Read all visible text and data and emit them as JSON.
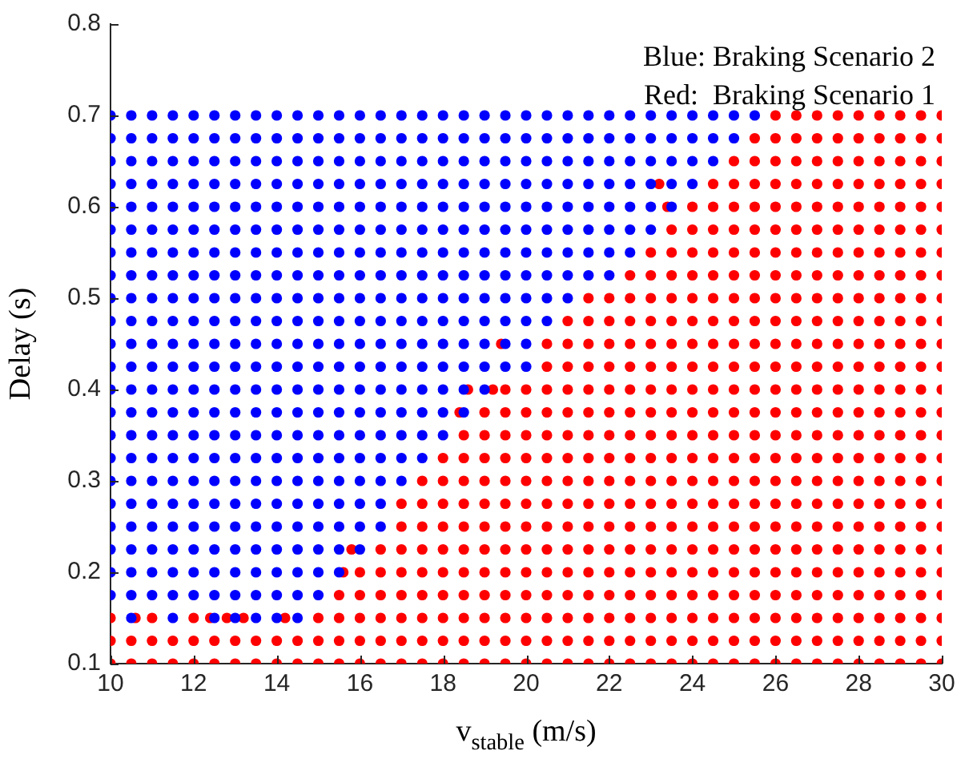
{
  "chart_data": {
    "type": "scatter",
    "xlabel": "v$_{stable}$ (m/s)",
    "ylabel": "Delay (s)",
    "xlim": [
      10,
      30
    ],
    "xticks": [
      10,
      12,
      14,
      16,
      18,
      20,
      22,
      24,
      26,
      28,
      30
    ],
    "ylim": [
      0.1,
      0.8
    ],
    "yticks": [
      0.1,
      0.2,
      0.3,
      0.4,
      0.5,
      0.6,
      0.7,
      0.8
    ],
    "marker": "circle",
    "annotations": [
      "Blue: Braking Scenario 2",
      "Red:  Braking Scenario 1"
    ],
    "series": [
      {
        "color": "#0000ff",
        "x": [
          10,
          10.5,
          11,
          11.5,
          12,
          12.5,
          13,
          13.5,
          14,
          14.5,
          15,
          15.5,
          16,
          16.5,
          17,
          17.5,
          18,
          18.5,
          19,
          19.5,
          20,
          20.5,
          21,
          21.5,
          22,
          22.5,
          23,
          23.5,
          24,
          24.5,
          25,
          25.5,
          10,
          10.5,
          11,
          11.5,
          12,
          12.5,
          13,
          13.5,
          14,
          14.5,
          15,
          15.5,
          16,
          16.5,
          17,
          17.5,
          18,
          18.5,
          19,
          19.5,
          20,
          20.5,
          21,
          21.5,
          22,
          22.5,
          23,
          23.5,
          24,
          24.5,
          25,
          10,
          10.5,
          11,
          11.5,
          12,
          12.5,
          13,
          13.5,
          14,
          14.5,
          15,
          15.5,
          16,
          16.5,
          17,
          17.5,
          18,
          18.5,
          19,
          19.5,
          20,
          20.5,
          21,
          21.5,
          22,
          22.5,
          23,
          23.5,
          24,
          24.5,
          10,
          10.5,
          11,
          11.5,
          12,
          12.5,
          13,
          13.5,
          14,
          14.5,
          15,
          15.5,
          16,
          16.5,
          17,
          17.5,
          18,
          18.5,
          19,
          19.5,
          20,
          20.5,
          21,
          21.5,
          22,
          22.5,
          23,
          23.5,
          24,
          10,
          10.5,
          11,
          11.5,
          12,
          12.5,
          13,
          13.5,
          14,
          14.5,
          15,
          15.5,
          16,
          16.5,
          17,
          17.5,
          18,
          18.5,
          19,
          19.5,
          20,
          20.5,
          21,
          21.5,
          22,
          22.5,
          23,
          23.5,
          10,
          10.5,
          11,
          11.5,
          12,
          12.5,
          13,
          13.5,
          14,
          14.5,
          15,
          15.5,
          16,
          16.5,
          17,
          17.5,
          18,
          18.5,
          19,
          19.5,
          20,
          20.5,
          21,
          21.5,
          22,
          22.5,
          23,
          10,
          10.5,
          11,
          11.5,
          12,
          12.5,
          13,
          13.5,
          14,
          14.5,
          15,
          15.5,
          16,
          16.5,
          17,
          17.5,
          18,
          18.5,
          19,
          19.5,
          20,
          20.5,
          21,
          21.5,
          22,
          22.5,
          10,
          10.5,
          11,
          11.5,
          12,
          12.5,
          13,
          13.5,
          14,
          14.5,
          15,
          15.5,
          16,
          16.5,
          17,
          17.5,
          18,
          18.5,
          19,
          19.5,
          20,
          20.5,
          21,
          21.5,
          22,
          10,
          10.5,
          11,
          11.5,
          12,
          12.5,
          13,
          13.5,
          14,
          14.5,
          15,
          15.5,
          16,
          16.5,
          17,
          17.5,
          18,
          18.5,
          19,
          19.5,
          20,
          20.5,
          21,
          10,
          10.5,
          11,
          11.5,
          12,
          12.5,
          13,
          13.5,
          14,
          14.5,
          15,
          15.5,
          16,
          16.5,
          17,
          17.5,
          18,
          18.5,
          19,
          19.5,
          20,
          20.5,
          10,
          10.5,
          11,
          11.5,
          12,
          12.5,
          13,
          13.5,
          14,
          14.5,
          15,
          15.5,
          16,
          16.5,
          17,
          17.5,
          18,
          18.5,
          19,
          19.5,
          20,
          10,
          10.5,
          11,
          11.5,
          12,
          12.5,
          13,
          13.5,
          14,
          14.5,
          15,
          15.5,
          16,
          16.5,
          17,
          17.5,
          18,
          18.5,
          19,
          19.5,
          20,
          10,
          10.5,
          11,
          11.5,
          12,
          12.5,
          13,
          13.5,
          14,
          14.5,
          15,
          15.5,
          16,
          16.5,
          17,
          17.5,
          18,
          18.5,
          19,
          10,
          10.5,
          11,
          11.5,
          12,
          12.5,
          13,
          13.5,
          14,
          14.5,
          15,
          15.5,
          16,
          16.5,
          17,
          17.5,
          18,
          18.5,
          10,
          10.5,
          11,
          11.5,
          12,
          12.5,
          13,
          13.5,
          14,
          14.5,
          15,
          15.5,
          16,
          16.5,
          17,
          17.5,
          18,
          10,
          10.5,
          11,
          11.5,
          12,
          12.5,
          13,
          13.5,
          14,
          14.5,
          15,
          15.5,
          16,
          16.5,
          17,
          17.5,
          10,
          10.5,
          11,
          11.5,
          12,
          12.5,
          13,
          13.5,
          14,
          14.5,
          15,
          15.5,
          16,
          16.5,
          17,
          10,
          10.5,
          11,
          11.5,
          12,
          12.5,
          13,
          13.5,
          14,
          14.5,
          15,
          15.5,
          16,
          16.5,
          10,
          10.5,
          11,
          11.5,
          12,
          12.5,
          13,
          13.5,
          14,
          14.5,
          15,
          15.5,
          16,
          16.5,
          10,
          10.5,
          11,
          11.5,
          12,
          12.5,
          13,
          13.5,
          14,
          14.5,
          15,
          15.5,
          16,
          10,
          10.5,
          11,
          11.5,
          12,
          12.5,
          13,
          13.5,
          14,
          14.5,
          15,
          15.5,
          10,
          10.5,
          11,
          11.5,
          12,
          12.5,
          13,
          13.5,
          14,
          14.5,
          15,
          10.5,
          11.5,
          12.5,
          13,
          13.5,
          14,
          14.5
        ],
        "values": [
          0.7,
          0.7,
          0.7,
          0.7,
          0.7,
          0.7,
          0.7,
          0.7,
          0.7,
          0.7,
          0.7,
          0.7,
          0.7,
          0.7,
          0.7,
          0.7,
          0.7,
          0.7,
          0.7,
          0.7,
          0.7,
          0.7,
          0.7,
          0.7,
          0.7,
          0.7,
          0.7,
          0.7,
          0.7,
          0.7,
          0.7,
          0.7,
          0.675,
          0.675,
          0.675,
          0.675,
          0.675,
          0.675,
          0.675,
          0.675,
          0.675,
          0.675,
          0.675,
          0.675,
          0.675,
          0.675,
          0.675,
          0.675,
          0.675,
          0.675,
          0.675,
          0.675,
          0.675,
          0.675,
          0.675,
          0.675,
          0.675,
          0.675,
          0.675,
          0.675,
          0.675,
          0.675,
          0.675,
          0.65,
          0.65,
          0.65,
          0.65,
          0.65,
          0.65,
          0.65,
          0.65,
          0.65,
          0.65,
          0.65,
          0.65,
          0.65,
          0.65,
          0.65,
          0.65,
          0.65,
          0.65,
          0.65,
          0.65,
          0.65,
          0.65,
          0.65,
          0.65,
          0.65,
          0.65,
          0.65,
          0.65,
          0.65,
          0.65,
          0.625,
          0.625,
          0.625,
          0.625,
          0.625,
          0.625,
          0.625,
          0.625,
          0.625,
          0.625,
          0.625,
          0.625,
          0.625,
          0.625,
          0.625,
          0.625,
          0.625,
          0.625,
          0.625,
          0.625,
          0.625,
          0.625,
          0.625,
          0.625,
          0.625,
          0.625,
          0.625,
          0.625,
          0.625,
          0.6,
          0.6,
          0.6,
          0.6,
          0.6,
          0.6,
          0.6,
          0.6,
          0.6,
          0.6,
          0.6,
          0.6,
          0.6,
          0.6,
          0.6,
          0.6,
          0.6,
          0.6,
          0.6,
          0.6,
          0.6,
          0.6,
          0.6,
          0.6,
          0.6,
          0.6,
          0.6,
          0.6,
          0.575,
          0.575,
          0.575,
          0.575,
          0.575,
          0.575,
          0.575,
          0.575,
          0.575,
          0.575,
          0.575,
          0.575,
          0.575,
          0.575,
          0.575,
          0.575,
          0.575,
          0.575,
          0.575,
          0.575,
          0.575,
          0.575,
          0.575,
          0.575,
          0.575,
          0.575,
          0.575,
          0.55,
          0.55,
          0.55,
          0.55,
          0.55,
          0.55,
          0.55,
          0.55,
          0.55,
          0.55,
          0.55,
          0.55,
          0.55,
          0.55,
          0.55,
          0.55,
          0.55,
          0.55,
          0.55,
          0.55,
          0.55,
          0.55,
          0.55,
          0.55,
          0.55,
          0.55,
          0.525,
          0.525,
          0.525,
          0.525,
          0.525,
          0.525,
          0.525,
          0.525,
          0.525,
          0.525,
          0.525,
          0.525,
          0.525,
          0.525,
          0.525,
          0.525,
          0.525,
          0.525,
          0.525,
          0.525,
          0.525,
          0.525,
          0.525,
          0.525,
          0.525,
          0.5,
          0.5,
          0.5,
          0.5,
          0.5,
          0.5,
          0.5,
          0.5,
          0.5,
          0.5,
          0.5,
          0.5,
          0.5,
          0.5,
          0.5,
          0.5,
          0.5,
          0.5,
          0.5,
          0.5,
          0.5,
          0.5,
          0.5,
          0.475,
          0.475,
          0.475,
          0.475,
          0.475,
          0.475,
          0.475,
          0.475,
          0.475,
          0.475,
          0.475,
          0.475,
          0.475,
          0.475,
          0.475,
          0.475,
          0.475,
          0.475,
          0.475,
          0.475,
          0.475,
          0.475,
          0.45,
          0.45,
          0.45,
          0.45,
          0.45,
          0.45,
          0.45,
          0.45,
          0.45,
          0.45,
          0.45,
          0.45,
          0.45,
          0.45,
          0.45,
          0.45,
          0.45,
          0.45,
          0.45,
          0.45,
          0.45,
          0.425,
          0.425,
          0.425,
          0.425,
          0.425,
          0.425,
          0.425,
          0.425,
          0.425,
          0.425,
          0.425,
          0.425,
          0.425,
          0.425,
          0.425,
          0.425,
          0.425,
          0.425,
          0.425,
          0.425,
          0.425,
          0.4,
          0.4,
          0.4,
          0.4,
          0.4,
          0.4,
          0.4,
          0.4,
          0.4,
          0.4,
          0.4,
          0.4,
          0.4,
          0.4,
          0.4,
          0.4,
          0.4,
          0.4,
          0.4,
          0.375,
          0.375,
          0.375,
          0.375,
          0.375,
          0.375,
          0.375,
          0.375,
          0.375,
          0.375,
          0.375,
          0.375,
          0.375,
          0.375,
          0.375,
          0.375,
          0.375,
          0.375,
          0.35,
          0.35,
          0.35,
          0.35,
          0.35,
          0.35,
          0.35,
          0.35,
          0.35,
          0.35,
          0.35,
          0.35,
          0.35,
          0.35,
          0.35,
          0.35,
          0.35,
          0.325,
          0.325,
          0.325,
          0.325,
          0.325,
          0.325,
          0.325,
          0.325,
          0.325,
          0.325,
          0.325,
          0.325,
          0.325,
          0.325,
          0.325,
          0.325,
          0.3,
          0.3,
          0.3,
          0.3,
          0.3,
          0.3,
          0.3,
          0.3,
          0.3,
          0.3,
          0.3,
          0.3,
          0.3,
          0.3,
          0.3,
          0.275,
          0.275,
          0.275,
          0.275,
          0.275,
          0.275,
          0.275,
          0.275,
          0.275,
          0.275,
          0.275,
          0.275,
          0.275,
          0.275,
          0.25,
          0.25,
          0.25,
          0.25,
          0.25,
          0.25,
          0.25,
          0.25,
          0.25,
          0.25,
          0.25,
          0.25,
          0.25,
          0.25,
          0.225,
          0.225,
          0.225,
          0.225,
          0.225,
          0.225,
          0.225,
          0.225,
          0.225,
          0.225,
          0.225,
          0.225,
          0.225,
          0.2,
          0.2,
          0.2,
          0.2,
          0.2,
          0.2,
          0.2,
          0.2,
          0.2,
          0.2,
          0.2,
          0.2,
          0.175,
          0.175,
          0.175,
          0.175,
          0.175,
          0.175,
          0.175,
          0.175,
          0.175,
          0.175,
          0.175,
          0.15,
          0.15,
          0.15,
          0.15,
          0.15,
          0.15,
          0.15
        ]
      },
      {
        "color": "#ff0000",
        "x": [
          26,
          26.5,
          27,
          27.5,
          28,
          28.5,
          29,
          29.5,
          30,
          25.5,
          26,
          26.5,
          27,
          27.5,
          28,
          28.5,
          29,
          29.5,
          30,
          25,
          25.5,
          26,
          26.5,
          27,
          27.5,
          28,
          28.5,
          29,
          29.5,
          30,
          24.5,
          25,
          25.5,
          26,
          26.5,
          27,
          27.5,
          28,
          28.5,
          29,
          29.5,
          30,
          24,
          24.5,
          25,
          25.5,
          26,
          26.5,
          27,
          27.5,
          28,
          28.5,
          29,
          29.5,
          30,
          23.5,
          24,
          24.5,
          25,
          25.5,
          26,
          26.5,
          27,
          27.5,
          28,
          28.5,
          29,
          29.5,
          30,
          23,
          23.5,
          24,
          24.5,
          25,
          25.5,
          26,
          26.5,
          27,
          27.5,
          28,
          28.5,
          29,
          29.5,
          30,
          22.5,
          23,
          23.5,
          24,
          24.5,
          25,
          25.5,
          26,
          26.5,
          27,
          27.5,
          28,
          28.5,
          29,
          29.5,
          30,
          21.5,
          22,
          22.5,
          23,
          23.5,
          24,
          24.5,
          25,
          25.5,
          26,
          26.5,
          27,
          27.5,
          28,
          28.5,
          29,
          29.5,
          30,
          21,
          21.5,
          22,
          22.5,
          23,
          23.5,
          24,
          24.5,
          25,
          25.5,
          26,
          26.5,
          27,
          27.5,
          28,
          28.5,
          29,
          29.5,
          30,
          20.5,
          21,
          21.5,
          22,
          22.5,
          23,
          23.5,
          24,
          24.5,
          25,
          25.5,
          26,
          26.5,
          27,
          27.5,
          28,
          28.5,
          29,
          29.5,
          30,
          20.5,
          21,
          21.5,
          22,
          22.5,
          23,
          23.5,
          24,
          24.5,
          25,
          25.5,
          26,
          26.5,
          27,
          27.5,
          28,
          28.5,
          29,
          29.5,
          30,
          19.5,
          20,
          20.5,
          21,
          21.5,
          22,
          22.5,
          23,
          23.5,
          24,
          24.5,
          25,
          25.5,
          26,
          26.5,
          27,
          27.5,
          28,
          28.5,
          29,
          29.5,
          30,
          19,
          19.5,
          20,
          20.5,
          21,
          21.5,
          22,
          22.5,
          23,
          23.5,
          24,
          24.5,
          25,
          25.5,
          26,
          26.5,
          27,
          27.5,
          28,
          28.5,
          29,
          29.5,
          30,
          18.5,
          19,
          19.5,
          20,
          20.5,
          21,
          21.5,
          22,
          22.5,
          23,
          23.5,
          24,
          24.5,
          25,
          25.5,
          26,
          26.5,
          27,
          27.5,
          28,
          28.5,
          29,
          29.5,
          30,
          18,
          18.5,
          19,
          19.5,
          20,
          20.5,
          21,
          21.5,
          22,
          22.5,
          23,
          23.5,
          24,
          24.5,
          25,
          25.5,
          26,
          26.5,
          27,
          27.5,
          28,
          28.5,
          29,
          29.5,
          30,
          17.5,
          18,
          18.5,
          19,
          19.5,
          20,
          20.5,
          21,
          21.5,
          22,
          22.5,
          23,
          23.5,
          24,
          24.5,
          25,
          25.5,
          26,
          26.5,
          27,
          27.5,
          28,
          28.5,
          29,
          29.5,
          30,
          17,
          17.5,
          18,
          18.5,
          19,
          19.5,
          20,
          20.5,
          21,
          21.5,
          22,
          22.5,
          23,
          23.5,
          24,
          24.5,
          25,
          25.5,
          26,
          26.5,
          27,
          27.5,
          28,
          28.5,
          29,
          29.5,
          30,
          17,
          17.5,
          18,
          18.5,
          19,
          19.5,
          20,
          20.5,
          21,
          21.5,
          22,
          22.5,
          23,
          23.5,
          24,
          24.5,
          25,
          25.5,
          26,
          26.5,
          27,
          27.5,
          28,
          28.5,
          29,
          29.5,
          30,
          16.5,
          17,
          17.5,
          18,
          18.5,
          19,
          19.5,
          20,
          20.5,
          21,
          21.5,
          22,
          22.5,
          23,
          23.5,
          24,
          24.5,
          25,
          25.5,
          26,
          26.5,
          27,
          27.5,
          28,
          28.5,
          29,
          29.5,
          30,
          16,
          16.5,
          17,
          17.5,
          18,
          18.5,
          19,
          19.5,
          20,
          20.5,
          21,
          21.5,
          22,
          22.5,
          23,
          23.5,
          24,
          24.5,
          25,
          25.5,
          26,
          26.5,
          27,
          27.5,
          28,
          28.5,
          29,
          29.5,
          30,
          15.5,
          16,
          16.5,
          17,
          17.5,
          18,
          18.5,
          19,
          19.5,
          20,
          20.5,
          21,
          21.5,
          22,
          22.5,
          23,
          23.5,
          24,
          24.5,
          25,
          25.5,
          26,
          26.5,
          27,
          27.5,
          28,
          28.5,
          29,
          29.5,
          30,
          10,
          11,
          12,
          15,
          15.5,
          16,
          16.5,
          17,
          17.5,
          18,
          18.5,
          19,
          19.5,
          20,
          20.5,
          21,
          21.5,
          22,
          22.5,
          23,
          23.5,
          24,
          24.5,
          25,
          25.5,
          26,
          26.5,
          27,
          27.5,
          28,
          28.5,
          29,
          29.5,
          30,
          10,
          10.5,
          11,
          11.5,
          12,
          12.5,
          13,
          13.5,
          14,
          14.5,
          15,
          15.5,
          16,
          16.5,
          17,
          17.5,
          18,
          18.5,
          19,
          19.5,
          20,
          20.5,
          21,
          21.5,
          22,
          22.5,
          23,
          23.5,
          24,
          24.5,
          25,
          25.5,
          26,
          26.5,
          27,
          27.5,
          28,
          28.5,
          29,
          29.5,
          30,
          10,
          10.5,
          11,
          11.5,
          12,
          12.5,
          13,
          13.5,
          14,
          14.5,
          15,
          15.5,
          16,
          16.5,
          17,
          17.5,
          18,
          18.5,
          19,
          19.5,
          20,
          20.5,
          21,
          21.5,
          22,
          22.5,
          23,
          23.5,
          24,
          24.5,
          25,
          25.5,
          26,
          26.5,
          27,
          27.5,
          28,
          28.5,
          29,
          29.5,
          30,
          23.2,
          23.4,
          19.4,
          18.6,
          19.2,
          18.4,
          15.8,
          15.6,
          10.6,
          12.4,
          12.8,
          13.2,
          14.2
        ],
        "values": [
          0.7,
          0.7,
          0.7,
          0.7,
          0.7,
          0.7,
          0.7,
          0.7,
          0.7,
          0.675,
          0.675,
          0.675,
          0.675,
          0.675,
          0.675,
          0.675,
          0.675,
          0.675,
          0.675,
          0.65,
          0.65,
          0.65,
          0.65,
          0.65,
          0.65,
          0.65,
          0.65,
          0.65,
          0.65,
          0.65,
          0.625,
          0.625,
          0.625,
          0.625,
          0.625,
          0.625,
          0.625,
          0.625,
          0.625,
          0.625,
          0.625,
          0.625,
          0.6,
          0.6,
          0.6,
          0.6,
          0.6,
          0.6,
          0.6,
          0.6,
          0.6,
          0.6,
          0.6,
          0.6,
          0.6,
          0.575,
          0.575,
          0.575,
          0.575,
          0.575,
          0.575,
          0.575,
          0.575,
          0.575,
          0.575,
          0.575,
          0.575,
          0.575,
          0.575,
          0.55,
          0.55,
          0.55,
          0.55,
          0.55,
          0.55,
          0.55,
          0.55,
          0.55,
          0.55,
          0.55,
          0.55,
          0.55,
          0.55,
          0.55,
          0.525,
          0.525,
          0.525,
          0.525,
          0.525,
          0.525,
          0.525,
          0.525,
          0.525,
          0.525,
          0.525,
          0.525,
          0.525,
          0.525,
          0.525,
          0.525,
          0.5,
          0.5,
          0.5,
          0.5,
          0.5,
          0.5,
          0.5,
          0.5,
          0.5,
          0.5,
          0.5,
          0.5,
          0.5,
          0.5,
          0.5,
          0.5,
          0.5,
          0.5,
          0.475,
          0.475,
          0.475,
          0.475,
          0.475,
          0.475,
          0.475,
          0.475,
          0.475,
          0.475,
          0.475,
          0.475,
          0.475,
          0.475,
          0.475,
          0.475,
          0.475,
          0.475,
          0.475,
          0.45,
          0.45,
          0.45,
          0.45,
          0.45,
          0.45,
          0.45,
          0.45,
          0.45,
          0.45,
          0.45,
          0.45,
          0.45,
          0.45,
          0.45,
          0.45,
          0.45,
          0.45,
          0.45,
          0.45,
          0.425,
          0.425,
          0.425,
          0.425,
          0.425,
          0.425,
          0.425,
          0.425,
          0.425,
          0.425,
          0.425,
          0.425,
          0.425,
          0.425,
          0.425,
          0.425,
          0.425,
          0.425,
          0.425,
          0.425,
          0.4,
          0.4,
          0.4,
          0.4,
          0.4,
          0.4,
          0.4,
          0.4,
          0.4,
          0.4,
          0.4,
          0.4,
          0.4,
          0.4,
          0.4,
          0.4,
          0.4,
          0.4,
          0.4,
          0.4,
          0.4,
          0.4,
          0.375,
          0.375,
          0.375,
          0.375,
          0.375,
          0.375,
          0.375,
          0.375,
          0.375,
          0.375,
          0.375,
          0.375,
          0.375,
          0.375,
          0.375,
          0.375,
          0.375,
          0.375,
          0.375,
          0.375,
          0.375,
          0.375,
          0.375,
          0.35,
          0.35,
          0.35,
          0.35,
          0.35,
          0.35,
          0.35,
          0.35,
          0.35,
          0.35,
          0.35,
          0.35,
          0.35,
          0.35,
          0.35,
          0.35,
          0.35,
          0.35,
          0.35,
          0.35,
          0.35,
          0.35,
          0.35,
          0.35,
          0.325,
          0.325,
          0.325,
          0.325,
          0.325,
          0.325,
          0.325,
          0.325,
          0.325,
          0.325,
          0.325,
          0.325,
          0.325,
          0.325,
          0.325,
          0.325,
          0.325,
          0.325,
          0.325,
          0.325,
          0.325,
          0.325,
          0.325,
          0.325,
          0.325,
          0.3,
          0.3,
          0.3,
          0.3,
          0.3,
          0.3,
          0.3,
          0.3,
          0.3,
          0.3,
          0.3,
          0.3,
          0.3,
          0.3,
          0.3,
          0.3,
          0.3,
          0.3,
          0.3,
          0.3,
          0.3,
          0.3,
          0.3,
          0.3,
          0.3,
          0.3,
          0.275,
          0.275,
          0.275,
          0.275,
          0.275,
          0.275,
          0.275,
          0.275,
          0.275,
          0.275,
          0.275,
          0.275,
          0.275,
          0.275,
          0.275,
          0.275,
          0.275,
          0.275,
          0.275,
          0.275,
          0.275,
          0.275,
          0.275,
          0.275,
          0.275,
          0.275,
          0.275,
          0.25,
          0.25,
          0.25,
          0.25,
          0.25,
          0.25,
          0.25,
          0.25,
          0.25,
          0.25,
          0.25,
          0.25,
          0.25,
          0.25,
          0.25,
          0.25,
          0.25,
          0.25,
          0.25,
          0.25,
          0.25,
          0.25,
          0.25,
          0.25,
          0.25,
          0.25,
          0.25,
          0.225,
          0.225,
          0.225,
          0.225,
          0.225,
          0.225,
          0.225,
          0.225,
          0.225,
          0.225,
          0.225,
          0.225,
          0.225,
          0.225,
          0.225,
          0.225,
          0.225,
          0.225,
          0.225,
          0.225,
          0.225,
          0.225,
          0.225,
          0.225,
          0.225,
          0.225,
          0.225,
          0.225,
          0.2,
          0.2,
          0.2,
          0.2,
          0.2,
          0.2,
          0.2,
          0.2,
          0.2,
          0.2,
          0.2,
          0.2,
          0.2,
          0.2,
          0.2,
          0.2,
          0.2,
          0.2,
          0.2,
          0.2,
          0.2,
          0.2,
          0.2,
          0.2,
          0.2,
          0.2,
          0.2,
          0.2,
          0.2,
          0.175,
          0.175,
          0.175,
          0.175,
          0.175,
          0.175,
          0.175,
          0.175,
          0.175,
          0.175,
          0.175,
          0.175,
          0.175,
          0.175,
          0.175,
          0.175,
          0.175,
          0.175,
          0.175,
          0.175,
          0.175,
          0.175,
          0.175,
          0.175,
          0.175,
          0.175,
          0.175,
          0.175,
          0.175,
          0.175,
          0.15,
          0.15,
          0.15,
          0.15,
          0.15,
          0.15,
          0.15,
          0.15,
          0.15,
          0.15,
          0.15,
          0.15,
          0.15,
          0.15,
          0.15,
          0.15,
          0.15,
          0.15,
          0.15,
          0.15,
          0.15,
          0.15,
          0.15,
          0.15,
          0.15,
          0.15,
          0.15,
          0.15,
          0.15,
          0.15,
          0.15,
          0.15,
          0.15,
          0.15,
          0.125,
          0.125,
          0.125,
          0.125,
          0.125,
          0.125,
          0.125,
          0.125,
          0.125,
          0.125,
          0.125,
          0.125,
          0.125,
          0.125,
          0.125,
          0.125,
          0.125,
          0.125,
          0.125,
          0.125,
          0.125,
          0.125,
          0.125,
          0.125,
          0.125,
          0.125,
          0.125,
          0.125,
          0.125,
          0.125,
          0.125,
          0.125,
          0.125,
          0.125,
          0.125,
          0.125,
          0.125,
          0.125,
          0.125,
          0.125,
          0.125,
          0.1,
          0.1,
          0.1,
          0.1,
          0.1,
          0.1,
          0.1,
          0.1,
          0.1,
          0.1,
          0.1,
          0.1,
          0.1,
          0.1,
          0.1,
          0.1,
          0.1,
          0.1,
          0.1,
          0.1,
          0.1,
          0.1,
          0.1,
          0.1,
          0.1,
          0.1,
          0.1,
          0.1,
          0.1,
          0.1,
          0.1,
          0.1,
          0.1,
          0.1,
          0.1,
          0.1,
          0.1,
          0.1,
          0.1,
          0.1,
          0.1,
          0.625,
          0.6,
          0.45,
          0.4,
          0.4,
          0.375,
          0.225,
          0.2,
          0.15,
          0.15,
          0.15,
          0.15,
          0.15
        ]
      }
    ]
  }
}
